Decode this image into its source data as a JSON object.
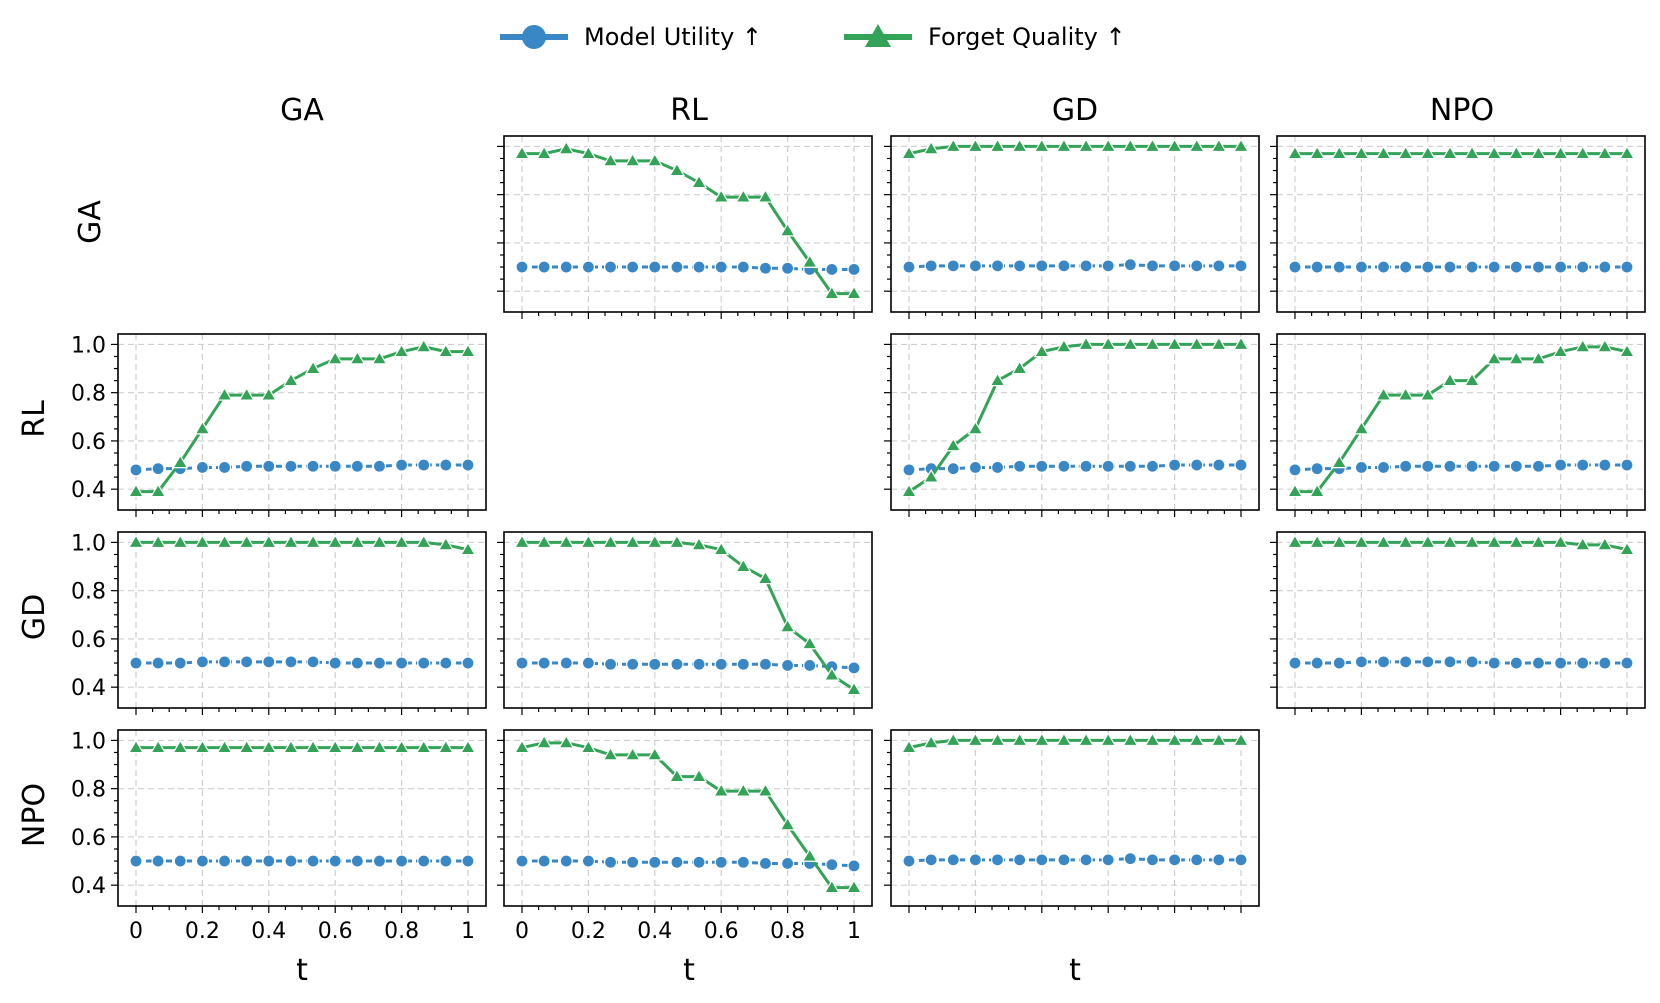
{
  "legend": {
    "items": [
      {
        "label": "Model Utility ↑",
        "color": "#3a87c5",
        "marker": "circle"
      },
      {
        "label": "Forget Quality ↑",
        "color": "#33a357",
        "marker": "triangle"
      }
    ]
  },
  "columns": [
    "GA",
    "RL",
    "GD",
    "NPO"
  ],
  "rows": [
    "GA",
    "RL",
    "GD",
    "NPO"
  ],
  "x_tick_labels": [
    "0",
    "0.2",
    "0.4",
    "0.6",
    "0.8",
    "1"
  ],
  "y_tick_labels": [
    "0.4",
    "0.6",
    "0.8",
    "1.0"
  ],
  "xlabel": "t",
  "chart_data": {
    "type": "line",
    "grid": true,
    "legend_position": "top-center",
    "x": [
      0,
      0.0667,
      0.1333,
      0.2,
      0.2667,
      0.3333,
      0.4,
      0.4667,
      0.5333,
      0.6,
      0.6667,
      0.7333,
      0.8,
      0.8667,
      0.9333,
      1.0
    ],
    "xlim": [
      0,
      1
    ],
    "ylim": [
      0.38,
      1.01
    ],
    "panels": [
      {
        "row": "GA",
        "col": "RL",
        "series": [
          {
            "name": "Model Utility ↑",
            "values": [
              0.5,
              0.5,
              0.5,
              0.5,
              0.5,
              0.5,
              0.5,
              0.5,
              0.5,
              0.5,
              0.5,
              0.495,
              0.495,
              0.49,
              0.49,
              0.49
            ]
          },
          {
            "name": "Forget Quality ↑",
            "values": [
              0.97,
              0.97,
              0.99,
              0.97,
              0.94,
              0.94,
              0.94,
              0.9,
              0.85,
              0.79,
              0.79,
              0.79,
              0.65,
              0.52,
              0.39,
              0.39
            ]
          }
        ]
      },
      {
        "row": "GA",
        "col": "GD",
        "series": [
          {
            "name": "Model Utility ↑",
            "values": [
              0.5,
              0.505,
              0.505,
              0.505,
              0.505,
              0.505,
              0.505,
              0.505,
              0.505,
              0.505,
              0.51,
              0.505,
              0.505,
              0.505,
              0.505,
              0.505
            ]
          },
          {
            "name": "Forget Quality ↑",
            "values": [
              0.97,
              0.99,
              1.0,
              1.0,
              1.0,
              1.0,
              1.0,
              1.0,
              1.0,
              1.0,
              1.0,
              1.0,
              1.0,
              1.0,
              1.0,
              1.0
            ]
          }
        ]
      },
      {
        "row": "GA",
        "col": "NPO",
        "series": [
          {
            "name": "Model Utility ↑",
            "values": [
              0.5,
              0.5,
              0.5,
              0.5,
              0.5,
              0.5,
              0.5,
              0.5,
              0.5,
              0.5,
              0.5,
              0.5,
              0.5,
              0.5,
              0.5,
              0.5
            ]
          },
          {
            "name": "Forget Quality ↑",
            "values": [
              0.97,
              0.97,
              0.97,
              0.97,
              0.97,
              0.97,
              0.97,
              0.97,
              0.97,
              0.97,
              0.97,
              0.97,
              0.97,
              0.97,
              0.97,
              0.97
            ]
          }
        ]
      },
      {
        "row": "RL",
        "col": "GA",
        "series": [
          {
            "name": "Model Utility ↑",
            "values": [
              0.48,
              0.485,
              0.485,
              0.49,
              0.49,
              0.495,
              0.495,
              0.495,
              0.495,
              0.495,
              0.495,
              0.495,
              0.5,
              0.5,
              0.5,
              0.5
            ]
          },
          {
            "name": "Forget Quality ↑",
            "values": [
              0.39,
              0.39,
              0.51,
              0.65,
              0.79,
              0.79,
              0.79,
              0.85,
              0.9,
              0.94,
              0.94,
              0.94,
              0.97,
              0.99,
              0.97,
              0.97
            ]
          }
        ]
      },
      {
        "row": "RL",
        "col": "GD",
        "series": [
          {
            "name": "Model Utility ↑",
            "values": [
              0.48,
              0.485,
              0.485,
              0.49,
              0.49,
              0.495,
              0.495,
              0.495,
              0.495,
              0.495,
              0.495,
              0.495,
              0.5,
              0.5,
              0.5,
              0.5
            ]
          },
          {
            "name": "Forget Quality ↑",
            "values": [
              0.39,
              0.45,
              0.58,
              0.65,
              0.85,
              0.9,
              0.97,
              0.99,
              1.0,
              1.0,
              1.0,
              1.0,
              1.0,
              1.0,
              1.0,
              1.0
            ]
          }
        ]
      },
      {
        "row": "RL",
        "col": "NPO",
        "series": [
          {
            "name": "Model Utility ↑",
            "values": [
              0.48,
              0.485,
              0.485,
              0.49,
              0.49,
              0.495,
              0.495,
              0.495,
              0.495,
              0.495,
              0.495,
              0.495,
              0.5,
              0.5,
              0.5,
              0.5
            ]
          },
          {
            "name": "Forget Quality ↑",
            "values": [
              0.39,
              0.39,
              0.51,
              0.65,
              0.79,
              0.79,
              0.79,
              0.85,
              0.85,
              0.94,
              0.94,
              0.94,
              0.97,
              0.99,
              0.99,
              0.97
            ]
          }
        ]
      },
      {
        "row": "GD",
        "col": "GA",
        "series": [
          {
            "name": "Model Utility ↑",
            "values": [
              0.5,
              0.5,
              0.5,
              0.505,
              0.505,
              0.505,
              0.505,
              0.505,
              0.505,
              0.5,
              0.5,
              0.5,
              0.5,
              0.5,
              0.5,
              0.5
            ]
          },
          {
            "name": "Forget Quality ↑",
            "values": [
              1.0,
              1.0,
              1.0,
              1.0,
              1.0,
              1.0,
              1.0,
              1.0,
              1.0,
              1.0,
              1.0,
              1.0,
              1.0,
              1.0,
              0.99,
              0.97
            ]
          }
        ]
      },
      {
        "row": "GD",
        "col": "RL",
        "series": [
          {
            "name": "Model Utility ↑",
            "values": [
              0.5,
              0.5,
              0.5,
              0.5,
              0.495,
              0.495,
              0.495,
              0.495,
              0.495,
              0.495,
              0.495,
              0.495,
              0.49,
              0.49,
              0.485,
              0.48
            ]
          },
          {
            "name": "Forget Quality ↑",
            "values": [
              1.0,
              1.0,
              1.0,
              1.0,
              1.0,
              1.0,
              1.0,
              1.0,
              0.99,
              0.97,
              0.9,
              0.85,
              0.65,
              0.58,
              0.45,
              0.39
            ]
          }
        ]
      },
      {
        "row": "GD",
        "col": "NPO",
        "series": [
          {
            "name": "Model Utility ↑",
            "values": [
              0.5,
              0.5,
              0.5,
              0.505,
              0.505,
              0.505,
              0.505,
              0.505,
              0.505,
              0.5,
              0.5,
              0.5,
              0.5,
              0.5,
              0.5,
              0.5
            ]
          },
          {
            "name": "Forget Quality ↑",
            "values": [
              1.0,
              1.0,
              1.0,
              1.0,
              1.0,
              1.0,
              1.0,
              1.0,
              1.0,
              1.0,
              1.0,
              1.0,
              1.0,
              0.99,
              0.99,
              0.97
            ]
          }
        ]
      },
      {
        "row": "NPO",
        "col": "GA",
        "series": [
          {
            "name": "Model Utility ↑",
            "values": [
              0.5,
              0.5,
              0.5,
              0.5,
              0.5,
              0.5,
              0.5,
              0.5,
              0.5,
              0.5,
              0.5,
              0.5,
              0.5,
              0.5,
              0.5,
              0.5
            ]
          },
          {
            "name": "Forget Quality ↑",
            "values": [
              0.97,
              0.97,
              0.97,
              0.97,
              0.97,
              0.97,
              0.97,
              0.97,
              0.97,
              0.97,
              0.97,
              0.97,
              0.97,
              0.97,
              0.97,
              0.97
            ]
          }
        ]
      },
      {
        "row": "NPO",
        "col": "RL",
        "series": [
          {
            "name": "Model Utility ↑",
            "values": [
              0.5,
              0.5,
              0.5,
              0.5,
              0.495,
              0.495,
              0.495,
              0.495,
              0.495,
              0.495,
              0.495,
              0.49,
              0.49,
              0.49,
              0.485,
              0.48
            ]
          },
          {
            "name": "Forget Quality ↑",
            "values": [
              0.97,
              0.99,
              0.99,
              0.97,
              0.94,
              0.94,
              0.94,
              0.85,
              0.85,
              0.79,
              0.79,
              0.79,
              0.65,
              0.52,
              0.39,
              0.39
            ]
          }
        ]
      },
      {
        "row": "NPO",
        "col": "GD",
        "series": [
          {
            "name": "Model Utility ↑",
            "values": [
              0.5,
              0.505,
              0.505,
              0.505,
              0.505,
              0.505,
              0.505,
              0.505,
              0.505,
              0.505,
              0.51,
              0.505,
              0.505,
              0.505,
              0.505,
              0.505
            ]
          },
          {
            "name": "Forget Quality ↑",
            "values": [
              0.97,
              0.99,
              1.0,
              1.0,
              1.0,
              1.0,
              1.0,
              1.0,
              1.0,
              1.0,
              1.0,
              1.0,
              1.0,
              1.0,
              1.0,
              1.0
            ]
          }
        ]
      }
    ]
  }
}
